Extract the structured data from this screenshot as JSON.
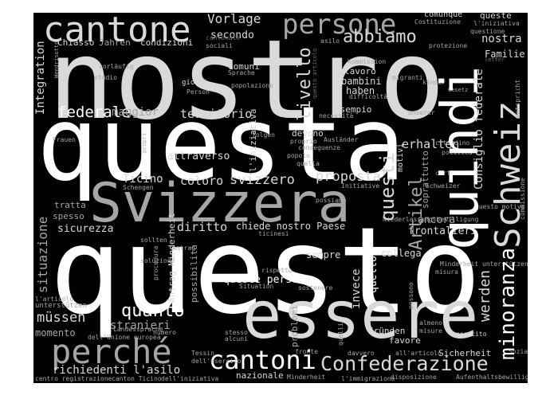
{
  "colors": {
    "background": "#000000",
    "bright": "#ffffff",
    "light": "#d9d9d9",
    "mid": "#a6a6a6",
    "dim": "#6e6e6e"
  },
  "words": [
    "nostro",
    "questa",
    "questo",
    "Svizzera",
    "essere",
    "quindi",
    "Schweiz",
    "cantone",
    "persone",
    "perché",
    "cantoni",
    "Confederazione",
    "minoranza",
    "abbiamo",
    "livello",
    "questi",
    "Artikel",
    "federale",
    "quanto",
    "werden",
    "svizzero",
    "proposta",
    "Vorlage",
    "Integration",
    "situazione",
    "diritto",
    "müssen",
    "stranieri",
    "chiede nostro Paese",
    "queste persone",
    "richiedenti l'asilo",
    "territorio",
    "maggior",
    "Consiglio federale",
    "erhalten",
    "sicurezza",
    "invece",
    "sempre",
    "coloro",
    "Ticino",
    "attraverso",
    "frontalieri",
    "ancora",
    "nostra",
    "Familie",
    "secondo",
    "condizioni",
    "Chiasso",
    "Jahren",
    "comunque",
    "queste",
    "comuni",
    "bambini",
    "lavoro",
    "haben",
    "devono",
    "esempio",
    "collega",
    "quello",
    "momento",
    "favore",
    "Gründen",
    "Sicherheit",
    "nazionale",
    "soprattutto",
    "spesso",
    "tratta",
    "motivi",
    "unterstützen",
    "Antrag Minderheit",
    "possibilità",
    "problemi",
    "l'iniziativa",
    "questione",
    "Costituzione",
    "protezione",
    "Kommission",
    "giorni",
    "Person",
    "popolazione",
    "vorläufig",
    "studio",
    "Sprache",
    "kinder",
    "Gesetz",
    "entspricht",
    "necessità",
    "difficoltà",
    "migranti",
    "folgen",
    "proprio",
    "Ausländer",
    "popolo",
    "conseguenze",
    "quella",
    "unserer",
    "cittadino",
    "politica",
    "certamente",
    "Schweizer",
    "questo motivo",
    "commissione",
    "Niederlassungsbewilligung",
    "possiamo",
    "Schengen",
    "Initiative",
    "ticinesi",
    "sollten",
    "soluzione",
    "procedura",
    "rispetto",
    "Situation",
    "sostenere",
    "quelli",
    "Minderheit unterstützen",
    "misura",
    "possono",
    "almeno",
    "misure",
    "esercito",
    "Sozialhilfe",
    "davvero",
    "all'articolo",
    "Tessin",
    "dell'esercito",
    "fronte",
    "Minderheit",
    "l'immigrazione",
    "disposizione",
    "Aufenthaltsbewilligung",
    "centro registrazione",
    "canton Ticino",
    "dell'iniziativa",
    "dell'Unione europea",
    "Landessprache",
    "numero",
    "stesso",
    "alcuni",
    "l'articolo",
    "sociali",
    "cantonale",
    "Wendrisotto",
    "settimane",
    "Antrag",
    "Frauen",
    "asilo",
    "questo articolo",
    "letter",
    "propri"
  ]
}
